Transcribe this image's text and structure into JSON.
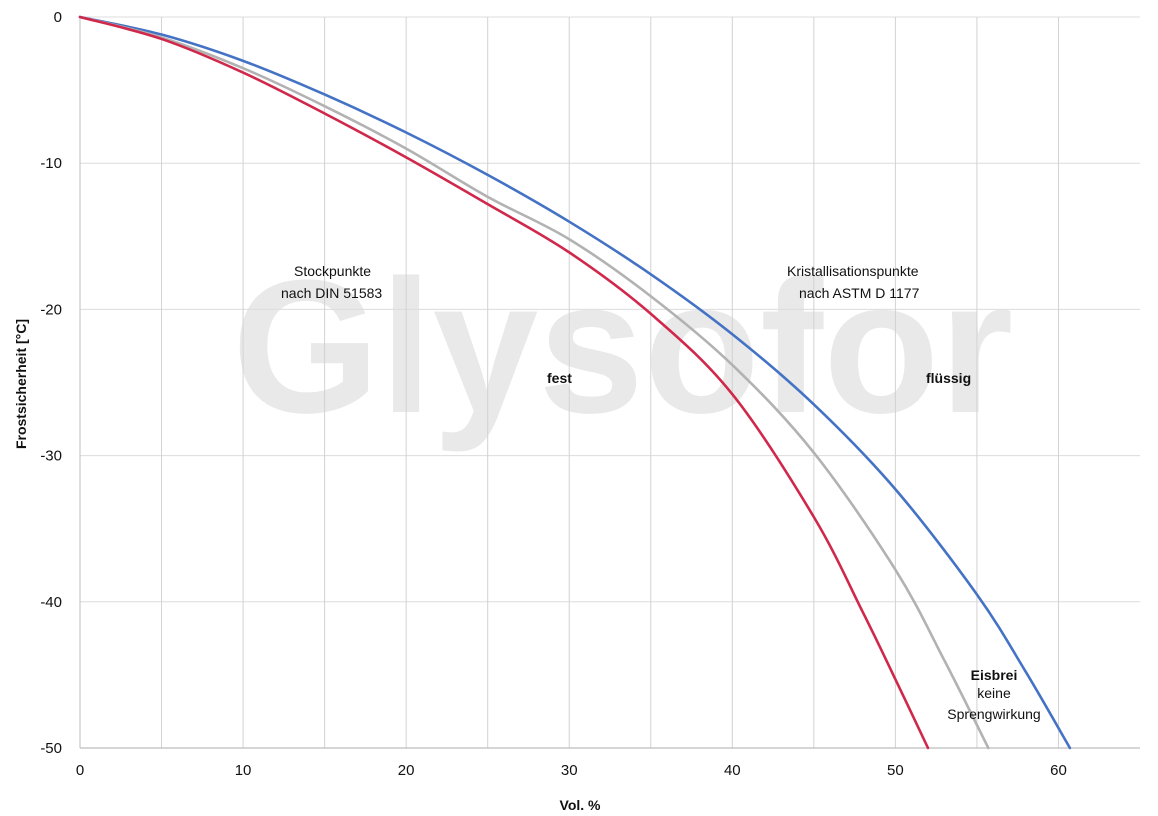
{
  "chart_data": {
    "type": "line",
    "xlabel": "Vol. %",
    "ylabel": "Frostsicherheit [°C]",
    "xlim": [
      0,
      65
    ],
    "ylim": [
      -50,
      0
    ],
    "x_ticks": [
      0,
      10,
      20,
      30,
      40,
      50,
      60
    ],
    "y_ticks": [
      0,
      -10,
      -20,
      -30,
      -40,
      -50
    ],
    "vertical_grid": [
      0,
      5,
      10,
      15,
      20,
      25,
      30,
      35,
      40,
      45,
      50,
      55,
      60
    ],
    "grid": true,
    "watermark": "Glysofor",
    "series": [
      {
        "color": "#4472c4",
        "x": [
          0,
          5,
          10,
          15,
          20,
          25,
          30,
          35,
          40,
          45,
          50,
          55,
          58,
          60.7
        ],
        "y": [
          0,
          -1.2,
          -3.0,
          -5.3,
          -7.9,
          -10.8,
          -14.0,
          -17.6,
          -21.7,
          -26.5,
          -32.3,
          -39.5,
          -44.8,
          -50
        ]
      },
      {
        "color": "#b2b2b2",
        "x": [
          0,
          5,
          10,
          15,
          20,
          25,
          30,
          35,
          40,
          45,
          50,
          53,
          55.7
        ],
        "y": [
          0,
          -1.4,
          -3.5,
          -6.1,
          -9.0,
          -12.3,
          -15.2,
          -19.1,
          -23.8,
          -29.8,
          -37.8,
          -44.0,
          -50
        ]
      },
      {
        "color": "#d0284b",
        "x": [
          0,
          5,
          10,
          15,
          20,
          25,
          30,
          35,
          40,
          45,
          48,
          50,
          52
        ],
        "y": [
          0,
          -1.5,
          -3.8,
          -6.6,
          -9.6,
          -12.8,
          -16.1,
          -20.3,
          -25.8,
          -34.2,
          -40.7,
          -45.3,
          -50
        ]
      }
    ],
    "annotations": {
      "stock_line1": "Stockpunkte",
      "stock_line2": "nach DIN 51583",
      "krist_line1": "Kristallisationspunkte",
      "krist_line2": "nach ASTM D 1177",
      "fest": "fest",
      "fluessig": "flüssig",
      "eisbrei": "Eisbrei",
      "keine": "keine",
      "spreng": "Sprengwirkung"
    }
  }
}
